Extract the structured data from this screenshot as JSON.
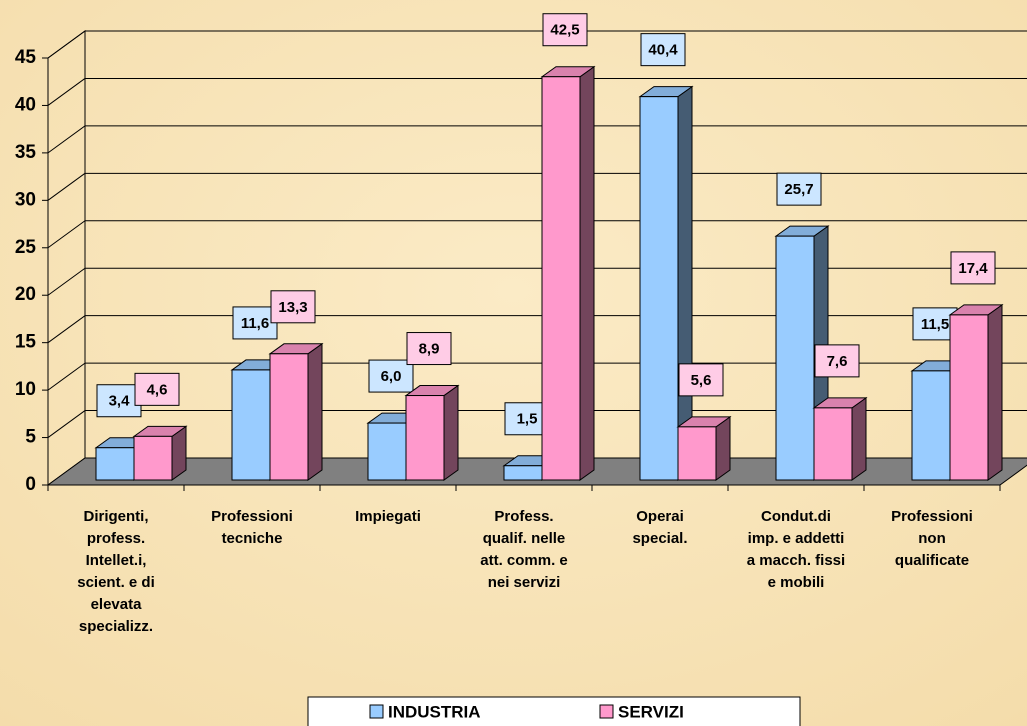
{
  "chart_data": {
    "type": "bar3d",
    "categories": [
      [
        "Dirigenti,",
        "profess.",
        "Intellet.i,",
        "scient. e di",
        "elevata",
        "specializz."
      ],
      [
        "Professioni",
        "tecniche"
      ],
      [
        "Impiegati"
      ],
      [
        "Profess.",
        "qualif. nelle",
        "att. comm. e",
        "nei servizi"
      ],
      [
        "Operai",
        "special."
      ],
      [
        "Condut.di",
        "imp. e addetti",
        "a macch. fissi",
        "e mobili"
      ],
      [
        "Professioni",
        "non",
        "qualificate"
      ]
    ],
    "series": [
      {
        "name": "INDUSTRIA",
        "color": "#99ccff",
        "values": [
          3.4,
          11.6,
          6.0,
          1.5,
          40.4,
          25.7,
          11.5
        ],
        "value_labels": [
          "3,4",
          "11,6",
          "6,0",
          "1,5",
          "40,4",
          "25,7",
          "11,5"
        ]
      },
      {
        "name": "SERVIZI",
        "color": "#ff99cc",
        "values": [
          4.6,
          13.3,
          8.9,
          42.5,
          5.6,
          7.6,
          17.4
        ],
        "value_labels": [
          "4,6",
          "13,3",
          "8,9",
          "42,5",
          "5,6",
          "7,6",
          "17,4"
        ]
      }
    ],
    "ylim": [
      0,
      45
    ],
    "yticks": [
      0,
      5,
      10,
      15,
      20,
      25,
      30,
      35,
      40,
      45
    ],
    "grid": true
  }
}
